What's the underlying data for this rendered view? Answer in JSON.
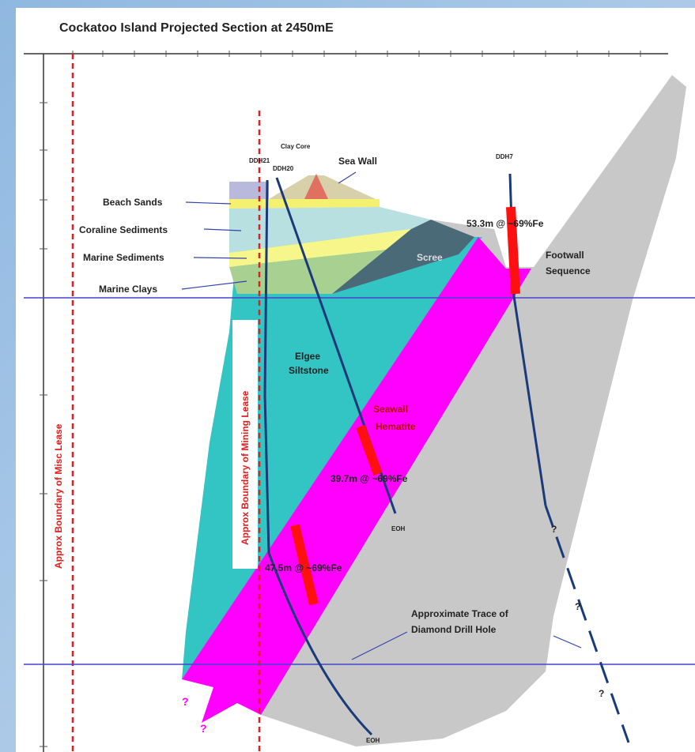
{
  "title": "Cockatoo Island Projected Section at 2450mE",
  "lease_labels": {
    "misc": "Approx Boundary of Misc Lease",
    "mining": "Approx Boundary of Mining Lease"
  },
  "holes": {
    "ddh21": "DDH21",
    "ddh20": "DDH20",
    "ddh7": "DDH7",
    "eoh_ddh20": "EOH",
    "eoh_ddh21": "EOH"
  },
  "units": {
    "clay_core": "Clay Core",
    "sea_wall": "Sea Wall",
    "beach_sands": "Beach Sands",
    "coraline": "Coraline Sediments",
    "marine_sed": "Marine Sediments",
    "marine_clays": "Marine Clays",
    "scree": "Scree",
    "footwall": [
      "Footwall",
      "Sequence"
    ],
    "elgee": [
      "Elgee",
      "Siltstone"
    ],
    "hematite": [
      "Seawall",
      "Hematite"
    ]
  },
  "intercepts": {
    "ddh7": "53.3m @ ~69%Fe",
    "ddh20": "39.7m @ ~69%Fe",
    "ddh21": "47.5m @ ~69%Fe"
  },
  "trace_label": [
    "Approximate Trace of",
    "Diamond Drill Hole"
  ],
  "unknowns": [
    "?",
    "?",
    "?",
    "?",
    "?"
  ]
}
